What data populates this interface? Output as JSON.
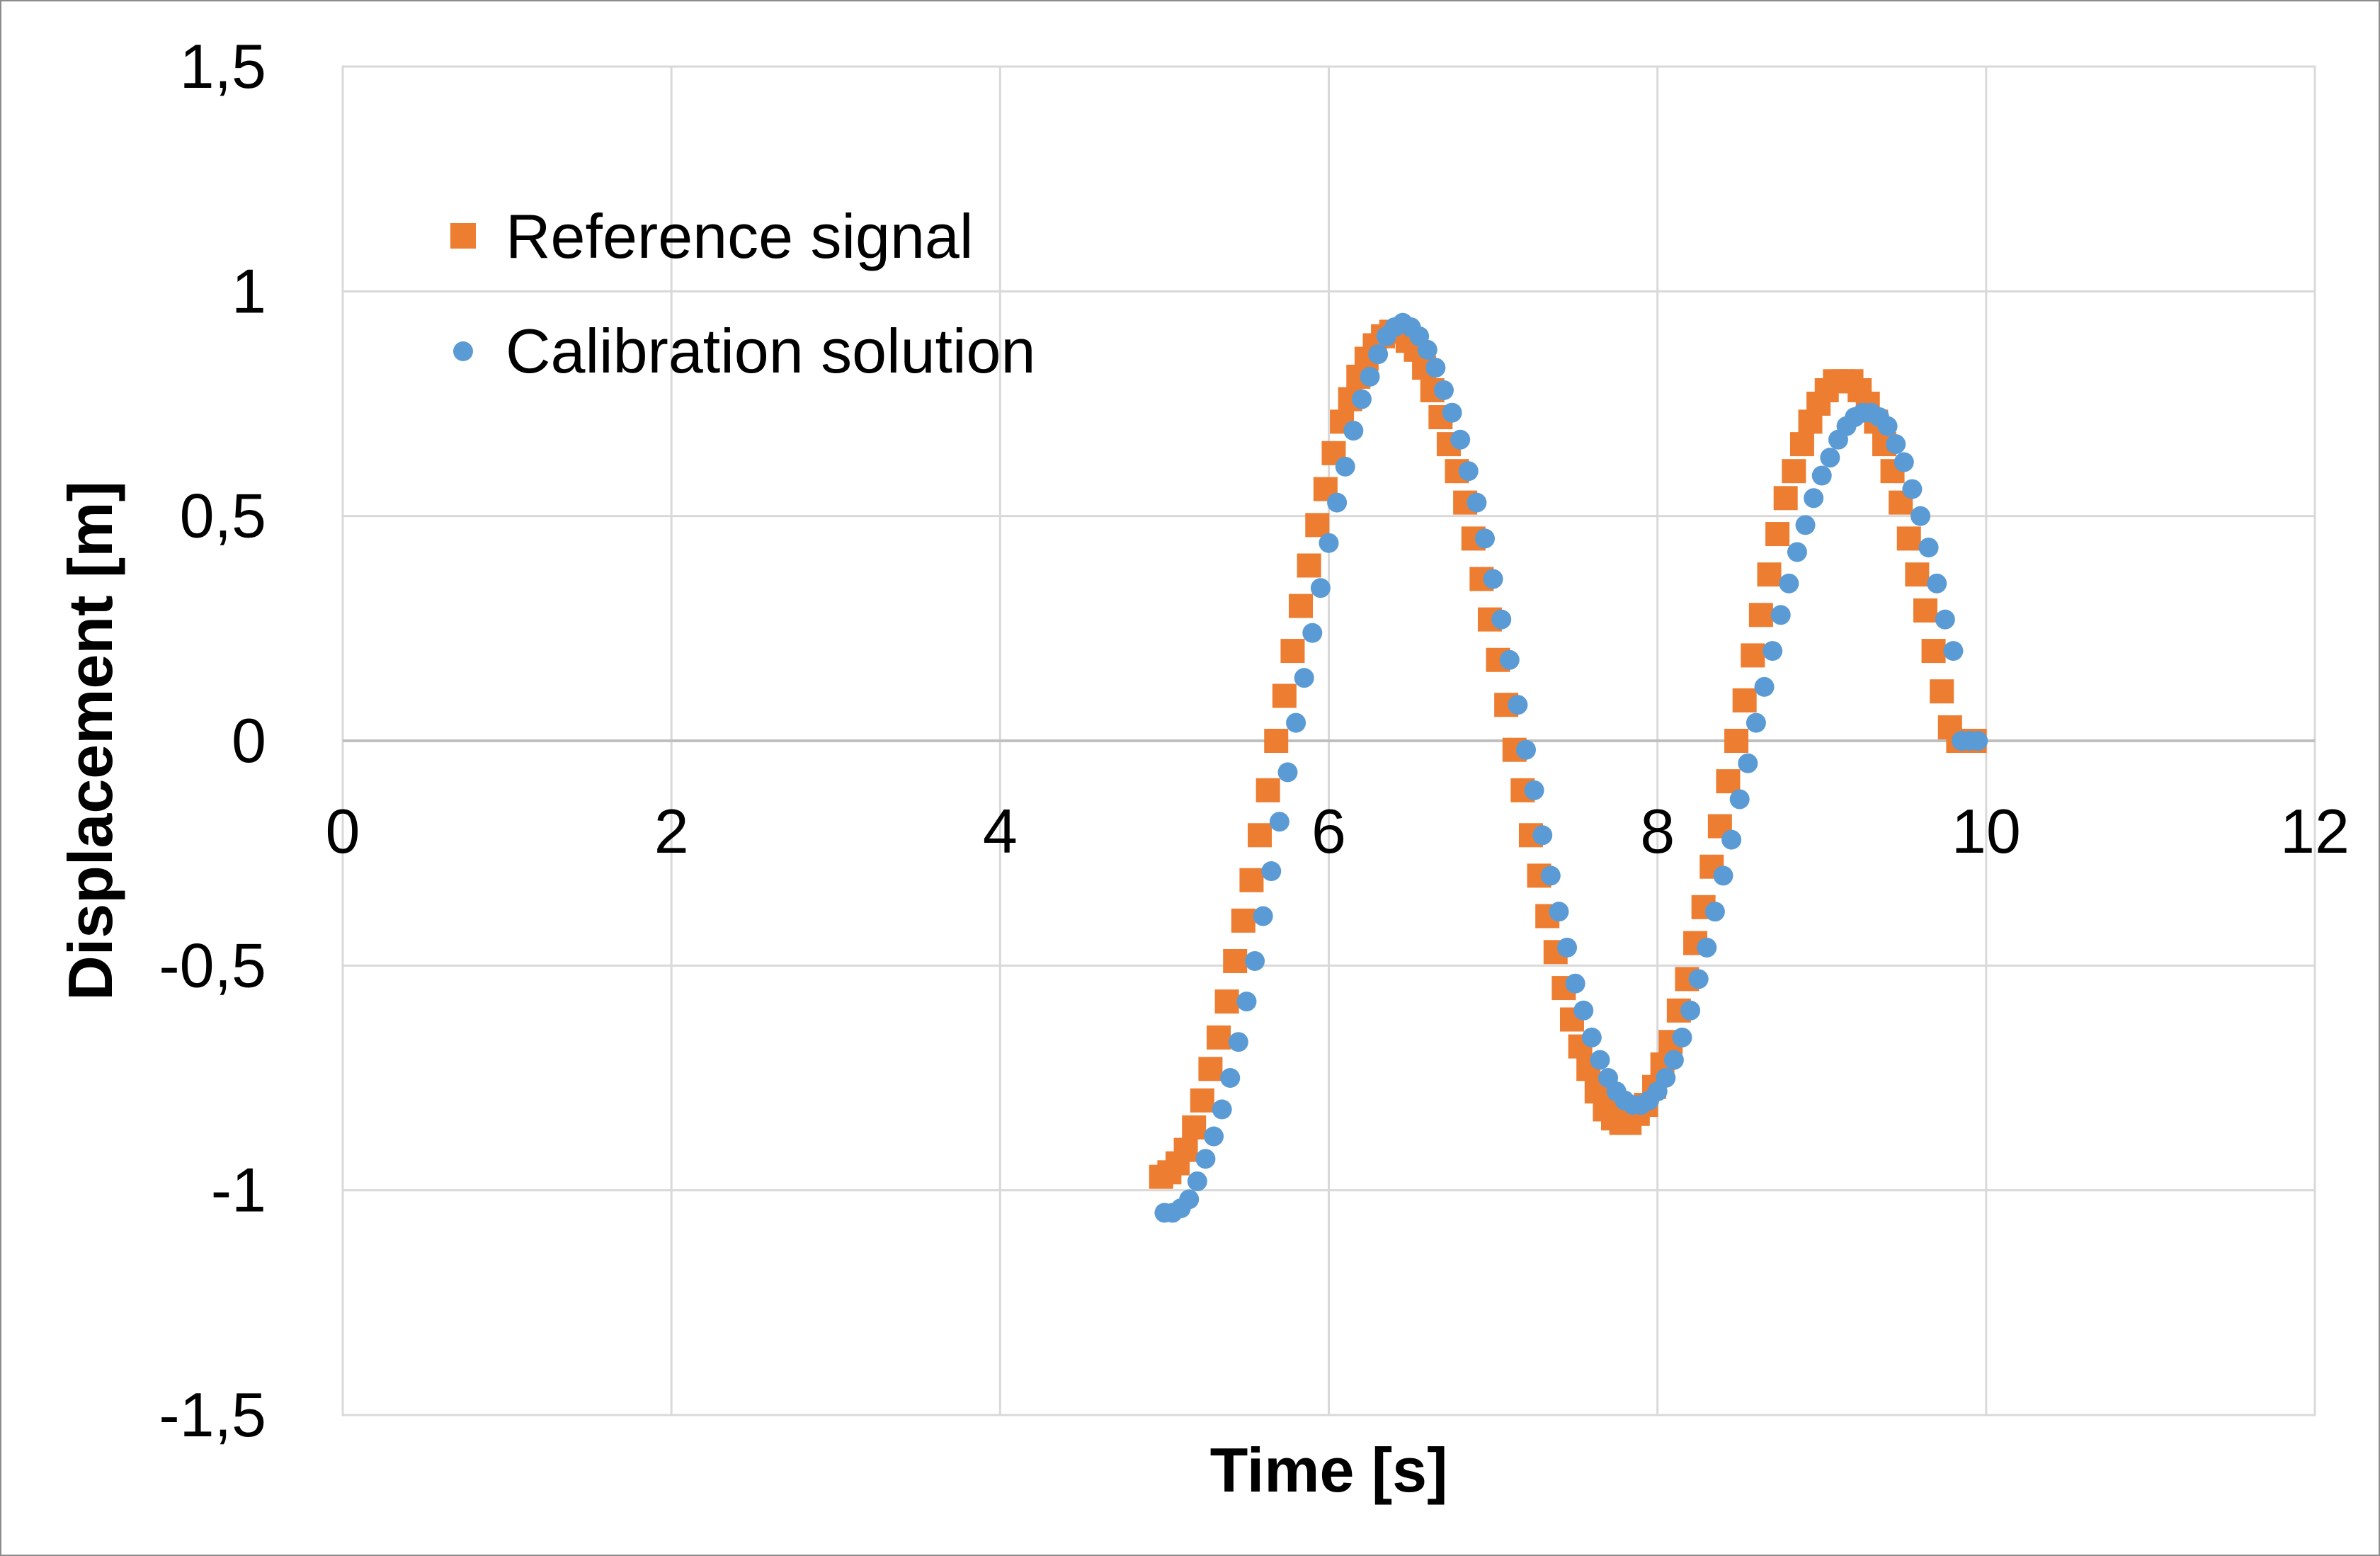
{
  "chart_data": {
    "type": "scatter",
    "xlabel": "Time [s]",
    "ylabel": "Displacement [m]",
    "xlim": [
      0,
      12
    ],
    "ylim": [
      -1.5,
      1.5
    ],
    "x_ticks": [
      0,
      2,
      4,
      6,
      8,
      10,
      12
    ],
    "y_ticks": [
      -1.5,
      -1,
      -0.5,
      0,
      0.5,
      1,
      1.5
    ],
    "x_tick_labels": [
      "0",
      "2",
      "4",
      "6",
      "8",
      "10",
      "12"
    ],
    "y_tick_labels": [
      "-1,5",
      "-1",
      "-0,5",
      "0",
      "0,5",
      "1",
      "1,5"
    ],
    "grid": true,
    "legend_position": "top-left",
    "series": [
      {
        "name": "Reference signal",
        "marker": "square",
        "color": "#ED7D31",
        "x": [
          4.98,
          5.03,
          5.08,
          5.13,
          5.18,
          5.23,
          5.28,
          5.33,
          5.38,
          5.43,
          5.48,
          5.53,
          5.58,
          5.63,
          5.68,
          5.73,
          5.78,
          5.83,
          5.88,
          5.93,
          5.98,
          6.03,
          6.08,
          6.13,
          6.18,
          6.23,
          6.28,
          6.33,
          6.38,
          6.43,
          6.48,
          6.53,
          6.58,
          6.63,
          6.68,
          6.73,
          6.78,
          6.83,
          6.88,
          6.93,
          6.98,
          7.03,
          7.08,
          7.13,
          7.18,
          7.23,
          7.28,
          7.33,
          7.38,
          7.43,
          7.48,
          7.53,
          7.58,
          7.63,
          7.68,
          7.73,
          7.78,
          7.83,
          7.88,
          7.93,
          7.98,
          8.03,
          8.08,
          8.13,
          8.18,
          8.23,
          8.28,
          8.33,
          8.38,
          8.43,
          8.48,
          8.53,
          8.58,
          8.63,
          8.68,
          8.73,
          8.78,
          8.83,
          8.88,
          8.93,
          8.98,
          9.03,
          9.08,
          9.13,
          9.18,
          9.23,
          9.28,
          9.33,
          9.38,
          9.43,
          9.48,
          9.53,
          9.58,
          9.63,
          9.68,
          9.73,
          9.78,
          9.83,
          9.88,
          9.93
        ],
        "y": [
          -0.97,
          -0.96,
          -0.94,
          -0.91,
          -0.86,
          -0.8,
          -0.73,
          -0.66,
          -0.58,
          -0.49,
          -0.4,
          -0.31,
          -0.21,
          -0.11,
          0.0,
          0.1,
          0.2,
          0.3,
          0.39,
          0.48,
          0.56,
          0.64,
          0.71,
          0.76,
          0.81,
          0.85,
          0.88,
          0.9,
          0.91,
          0.91,
          0.89,
          0.87,
          0.83,
          0.78,
          0.72,
          0.66,
          0.6,
          0.53,
          0.45,
          0.36,
          0.27,
          0.18,
          0.08,
          -0.02,
          -0.11,
          -0.21,
          -0.3,
          -0.39,
          -0.47,
          -0.55,
          -0.62,
          -0.68,
          -0.73,
          -0.78,
          -0.82,
          -0.84,
          -0.85,
          -0.85,
          -0.83,
          -0.81,
          -0.77,
          -0.72,
          -0.67,
          -0.6,
          -0.53,
          -0.45,
          -0.37,
          -0.28,
          -0.19,
          -0.09,
          0.0,
          0.09,
          0.19,
          0.28,
          0.37,
          0.46,
          0.54,
          0.6,
          0.66,
          0.71,
          0.75,
          0.78,
          0.8,
          0.8,
          0.8,
          0.78,
          0.75,
          0.71,
          0.66,
          0.6,
          0.53,
          0.45,
          0.37,
          0.29,
          0.2,
          0.11,
          0.03,
          0.0,
          0.0,
          0.0
        ],
        "count": 100
      },
      {
        "name": "Calibration solution",
        "marker": "circle",
        "color": "#5B9BD5",
        "x": [
          5.0,
          5.05,
          5.1,
          5.15,
          5.2,
          5.25,
          5.3,
          5.35,
          5.4,
          5.45,
          5.5,
          5.55,
          5.6,
          5.65,
          5.7,
          5.75,
          5.8,
          5.85,
          5.9,
          5.95,
          6.0,
          6.05,
          6.1,
          6.15,
          6.2,
          6.25,
          6.3,
          6.35,
          6.4,
          6.45,
          6.5,
          6.55,
          6.6,
          6.65,
          6.7,
          6.75,
          6.8,
          6.85,
          6.9,
          6.95,
          7.0,
          7.05,
          7.1,
          7.15,
          7.2,
          7.25,
          7.3,
          7.35,
          7.4,
          7.45,
          7.5,
          7.55,
          7.6,
          7.65,
          7.7,
          7.75,
          7.8,
          7.85,
          7.9,
          7.95,
          8.0,
          8.05,
          8.1,
          8.15,
          8.2,
          8.25,
          8.3,
          8.35,
          8.4,
          8.45,
          8.5,
          8.55,
          8.6,
          8.65,
          8.7,
          8.75,
          8.8,
          8.85,
          8.9,
          8.95,
          9.0,
          9.05,
          9.1,
          9.15,
          9.2,
          9.25,
          9.3,
          9.35,
          9.4,
          9.45,
          9.5,
          9.55,
          9.6,
          9.65,
          9.7,
          9.75,
          9.8,
          9.85,
          9.9,
          9.95
        ],
        "y": [
          -1.05,
          -1.05,
          -1.04,
          -1.02,
          -0.98,
          -0.93,
          -0.88,
          -0.82,
          -0.75,
          -0.67,
          -0.58,
          -0.49,
          -0.39,
          -0.29,
          -0.18,
          -0.07,
          0.04,
          0.14,
          0.24,
          0.34,
          0.44,
          0.53,
          0.61,
          0.69,
          0.76,
          0.81,
          0.86,
          0.9,
          0.92,
          0.93,
          0.92,
          0.9,
          0.87,
          0.83,
          0.78,
          0.73,
          0.67,
          0.6,
          0.53,
          0.45,
          0.36,
          0.27,
          0.18,
          0.08,
          -0.02,
          -0.11,
          -0.21,
          -0.3,
          -0.38,
          -0.46,
          -0.54,
          -0.6,
          -0.66,
          -0.71,
          -0.75,
          -0.78,
          -0.8,
          -0.81,
          -0.81,
          -0.8,
          -0.78,
          -0.75,
          -0.71,
          -0.66,
          -0.6,
          -0.53,
          -0.46,
          -0.38,
          -0.3,
          -0.22,
          -0.13,
          -0.05,
          0.04,
          0.12,
          0.2,
          0.28,
          0.35,
          0.42,
          0.48,
          0.54,
          0.59,
          0.63,
          0.67,
          0.7,
          0.72,
          0.73,
          0.73,
          0.72,
          0.7,
          0.66,
          0.62,
          0.56,
          0.5,
          0.43,
          0.35,
          0.27,
          0.2,
          0.0,
          0.0,
          0.0
        ],
        "count": 100
      }
    ]
  }
}
